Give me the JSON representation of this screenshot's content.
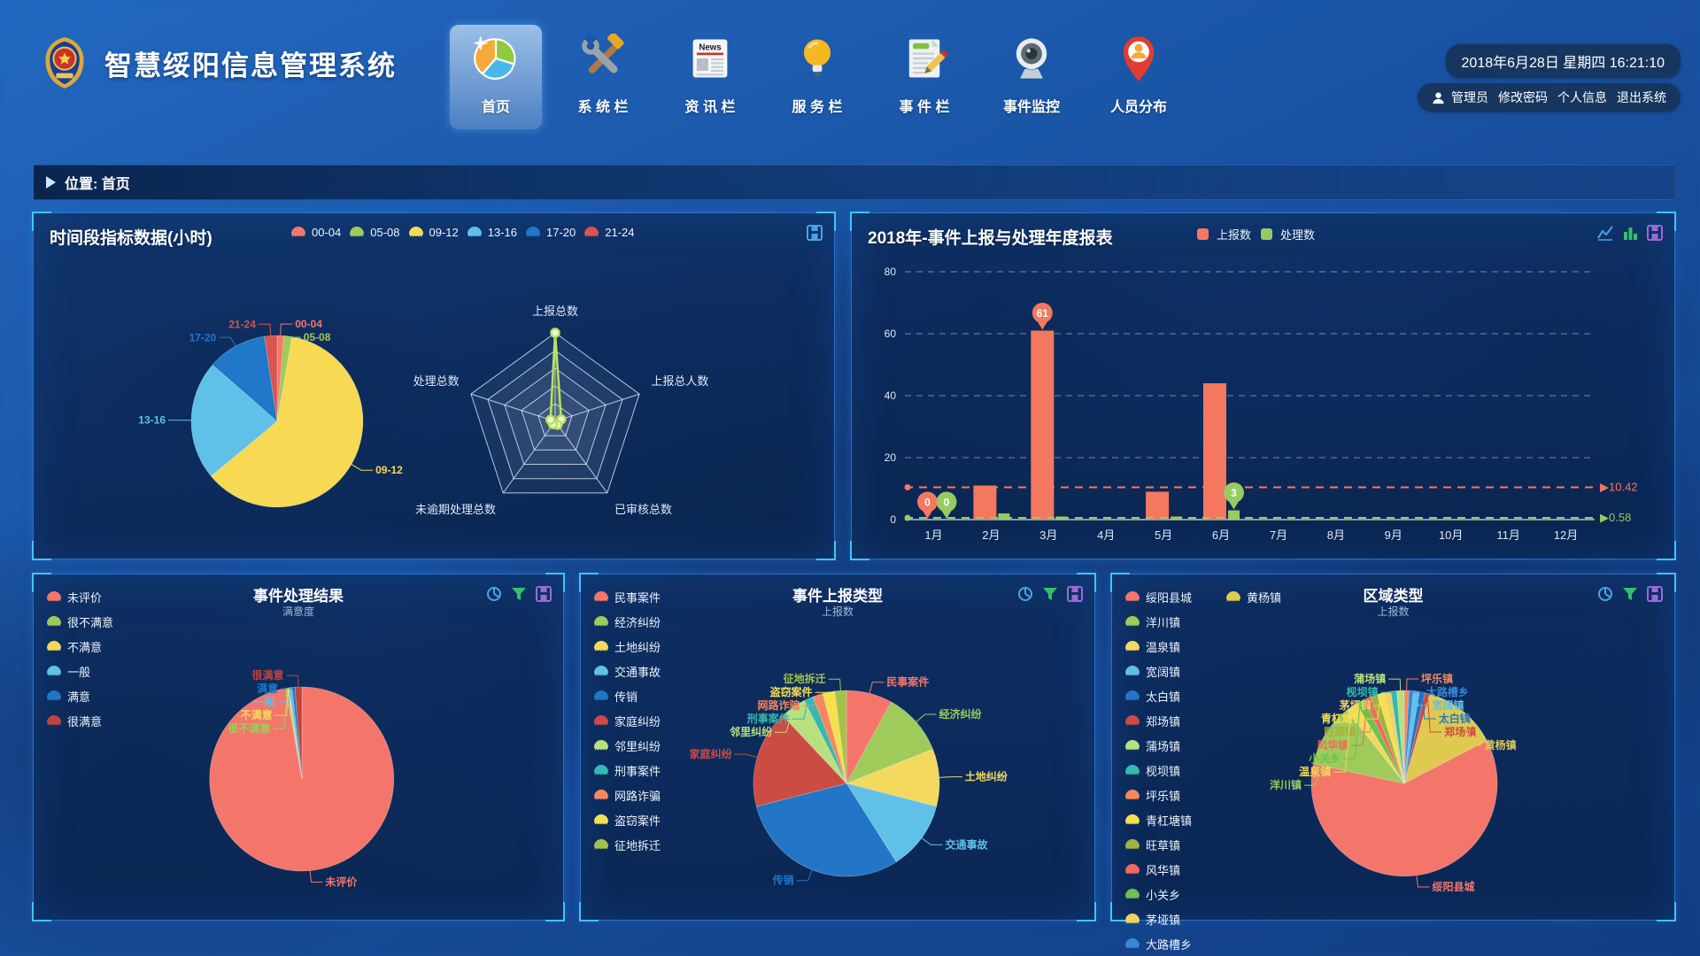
{
  "app": {
    "title": "智慧绥阳信息管理系统"
  },
  "header": {
    "nav": [
      {
        "label": "首页",
        "active": true
      },
      {
        "label": "系 统 栏",
        "active": false
      },
      {
        "label": "资 讯 栏",
        "active": false
      },
      {
        "label": "服 务 栏",
        "active": false
      },
      {
        "label": "事 件 栏",
        "active": false
      },
      {
        "label": "事件监控",
        "active": false
      },
      {
        "label": "人员分布",
        "active": false
      }
    ],
    "datetime": "2018年6月28日 星期四 16:21:10",
    "user": {
      "name": "管理员",
      "links": [
        "修改密码",
        "个人信息",
        "退出系统"
      ]
    }
  },
  "breadcrumb": {
    "label": "位置: 首页"
  },
  "panels": {
    "time": {
      "title": "时间段指标数据(小时)",
      "legend": [
        "00-04",
        "05-08",
        "09-12",
        "13-16",
        "17-20",
        "21-24"
      ]
    },
    "yearly": {
      "title": "2018年-事件上报与处理年度报表",
      "legend": [
        "上报数",
        "处理数"
      ]
    },
    "result": {
      "title": "事件处理结果",
      "subtitle": "满意度",
      "legend": [
        "未评价",
        "很不满意",
        "不满意",
        "一般",
        "满意",
        "很满意"
      ]
    },
    "type": {
      "title": "事件上报类型",
      "subtitle": "上报数",
      "legend": [
        "民事案件",
        "经济纠纷",
        "土地纠纷",
        "交通事故",
        "传销",
        "家庭纠纷",
        "邻里纠纷",
        "刑事案件",
        "网路诈骗",
        "盗窃案件",
        "征地拆迁"
      ]
    },
    "region": {
      "title": "区域类型",
      "subtitle": "上报数",
      "legend_col1": [
        "绥阳县城",
        "洋川镇",
        "温泉镇",
        "宽阔镇",
        "太白镇",
        "郑场镇",
        "蒲场镇",
        "枧坝镇",
        "坪乐镇",
        "青杠塘镇",
        "旺草镇",
        "风华镇",
        "小关乡",
        "茅垭镇",
        "大路槽乡"
      ],
      "legend_col2": [
        "黄杨镇"
      ]
    }
  },
  "chart_data": [
    {
      "id": "time-pie",
      "type": "pie",
      "slices": [
        {
          "label": "00-04",
          "value": 1.2,
          "color": "#f4766b"
        },
        {
          "label": "05-08",
          "value": 1.5,
          "color": "#9ecb59"
        },
        {
          "label": "09-12",
          "value": 60,
          "color": "#f7d954"
        },
        {
          "label": "13-16",
          "value": 22,
          "color": "#5fc0e8"
        },
        {
          "label": "17-20",
          "value": 11,
          "color": "#1f78c8"
        },
        {
          "label": "21-24",
          "value": 2.3,
          "color": "#d9534f"
        }
      ]
    },
    {
      "id": "indicator-radar",
      "type": "radar",
      "levels": 5,
      "max": 125,
      "color": "#b8e25f",
      "axes": [
        "上报总数",
        "上报总人数",
        "已审核总数",
        "未逾期处理总数",
        "处理总数"
      ],
      "values": [
        125,
        9,
        6,
        5,
        7
      ]
    },
    {
      "id": "yearly-bar",
      "type": "bar",
      "categories": [
        "1月",
        "2月",
        "3月",
        "4月",
        "5月",
        "6月",
        "7月",
        "8月",
        "9月",
        "10月",
        "11月",
        "12月"
      ],
      "ylim": [
        0,
        80
      ],
      "yticks": [
        0,
        20,
        40,
        60,
        80
      ],
      "series": [
        {
          "name": "上报数",
          "color": "#f4785f",
          "values": [
            0,
            11,
            61,
            0,
            9,
            44,
            0,
            0,
            0,
            0,
            0,
            0
          ],
          "avg": 10.42,
          "avg_label": "10.42",
          "pins": [
            {
              "index": 0,
              "value": 0
            },
            {
              "index": 2,
              "value": 61
            }
          ]
        },
        {
          "name": "处理数",
          "color": "#97ca61",
          "values": [
            0,
            2,
            1,
            0,
            1,
            3,
            0,
            0,
            0,
            0,
            0,
            0
          ],
          "avg": 0.58,
          "avg_label": "0.58",
          "pins": [
            {
              "index": 0,
              "value": 0
            },
            {
              "index": 5,
              "value": 3
            }
          ]
        }
      ]
    },
    {
      "id": "result-pie",
      "type": "pie",
      "slices": [
        {
          "label": "未评价",
          "value": 96.2,
          "color": "#f4766b"
        },
        {
          "label": "很不满意",
          "value": 0.3,
          "color": "#9ecb59"
        },
        {
          "label": "不满意",
          "value": 0.3,
          "color": "#f3d95d"
        },
        {
          "label": "一般",
          "value": 0.5,
          "color": "#5fc0e8"
        },
        {
          "label": "满意",
          "value": 0.5,
          "color": "#2275c7"
        },
        {
          "label": "很满意",
          "value": 1.2,
          "color": "#c0443e"
        }
      ]
    },
    {
      "id": "type-pie",
      "type": "pie",
      "slices": [
        {
          "label": "民事案件",
          "value": 8,
          "color": "#f4766b"
        },
        {
          "label": "经济纠纷",
          "value": 11,
          "color": "#9ecb59"
        },
        {
          "label": "土地纠纷",
          "value": 10,
          "color": "#f3d95d"
        },
        {
          "label": "交通事故",
          "value": 12,
          "color": "#5fc0e8"
        },
        {
          "label": "传销",
          "value": 30,
          "color": "#2275c7"
        },
        {
          "label": "家庭纠纷",
          "value": 17,
          "color": "#cc4b43"
        },
        {
          "label": "邻里纠纷",
          "value": 4.5,
          "color": "#b8e07e"
        },
        {
          "label": "刑事案件",
          "value": 1.6,
          "color": "#35b8b0"
        },
        {
          "label": "网路诈骗",
          "value": 1.8,
          "color": "#f4875e"
        },
        {
          "label": "盗窃案件",
          "value": 2.1,
          "color": "#f5e04d"
        },
        {
          "label": "征地拆迁",
          "value": 2,
          "color": "#a3c24b"
        }
      ]
    },
    {
      "id": "region-pie",
      "type": "pie",
      "slices": [
        {
          "label": "坪乐镇",
          "value": 0.8,
          "color": "#f4875e"
        },
        {
          "label": "大路槽乡",
          "value": 0.8,
          "color": "#3a86d6"
        },
        {
          "label": "宽阔镇",
          "value": 1.0,
          "color": "#5fc0e8"
        },
        {
          "label": "太白镇",
          "value": 1.0,
          "color": "#2275c7"
        },
        {
          "label": "郑场镇",
          "value": 0.8,
          "color": "#cc4b43"
        },
        {
          "label": "黄杨镇",
          "value": 13,
          "color": "#dfc94f"
        },
        {
          "label": "绥阳县城",
          "value": 61,
          "color": "#f4766b"
        },
        {
          "label": "洋川镇",
          "value": 11,
          "color": "#9ecb59"
        },
        {
          "label": "温泉镇",
          "value": 2,
          "color": "#f3d95d"
        },
        {
          "label": "小关乡",
          "value": 1.5,
          "color": "#6cc24a"
        },
        {
          "label": "风华镇",
          "value": 1.2,
          "color": "#ef6a5a"
        },
        {
          "label": "旺草镇",
          "value": 1.2,
          "color": "#a0b33e"
        },
        {
          "label": "青杠塘镇",
          "value": 1.2,
          "color": "#f5e04d"
        },
        {
          "label": "茅垭镇",
          "value": 1.2,
          "color": "#f0d25f"
        },
        {
          "label": "枧坝镇",
          "value": 1.0,
          "color": "#35b8b0"
        },
        {
          "label": "蒲场镇",
          "value": 1.3,
          "color": "#b8e07e"
        }
      ]
    }
  ],
  "colors": {
    "accent_cyan": "#3fc6f7",
    "panel_border": "#2b6fc4",
    "series_report": "#f4785f",
    "series_handle": "#97ca61",
    "pill_bg": "#16365f"
  }
}
